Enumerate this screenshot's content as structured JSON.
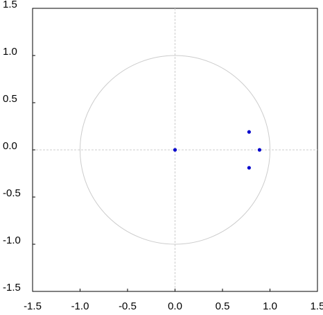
{
  "chart_data": {
    "type": "scatter",
    "x": [
      0,
      0.78,
      0.78,
      0.89
    ],
    "values": [
      0,
      0.19,
      -0.19,
      0
    ],
    "color": "#0000cc",
    "xlim": [
      -1.5,
      1.5
    ],
    "ylim": [
      -1.5,
      1.5
    ],
    "xticks": [
      -1.5,
      {
        "value": -1,
        "label": "-1.0"
      },
      -0.5,
      {
        "value": 0,
        "label": "0.0"
      },
      0.5,
      {
        "value": 1,
        "label": "1.0"
      },
      1.5
    ],
    "yticks": [
      -1.5,
      {
        "value": -1,
        "label": "-1.0"
      },
      -0.5,
      {
        "value": 0,
        "label": "0.0"
      },
      0.5,
      {
        "value": 1,
        "label": "1.0"
      },
      1.5
    ],
    "unit_circle_radius": 1,
    "zero_lines": true,
    "grid": false
  }
}
